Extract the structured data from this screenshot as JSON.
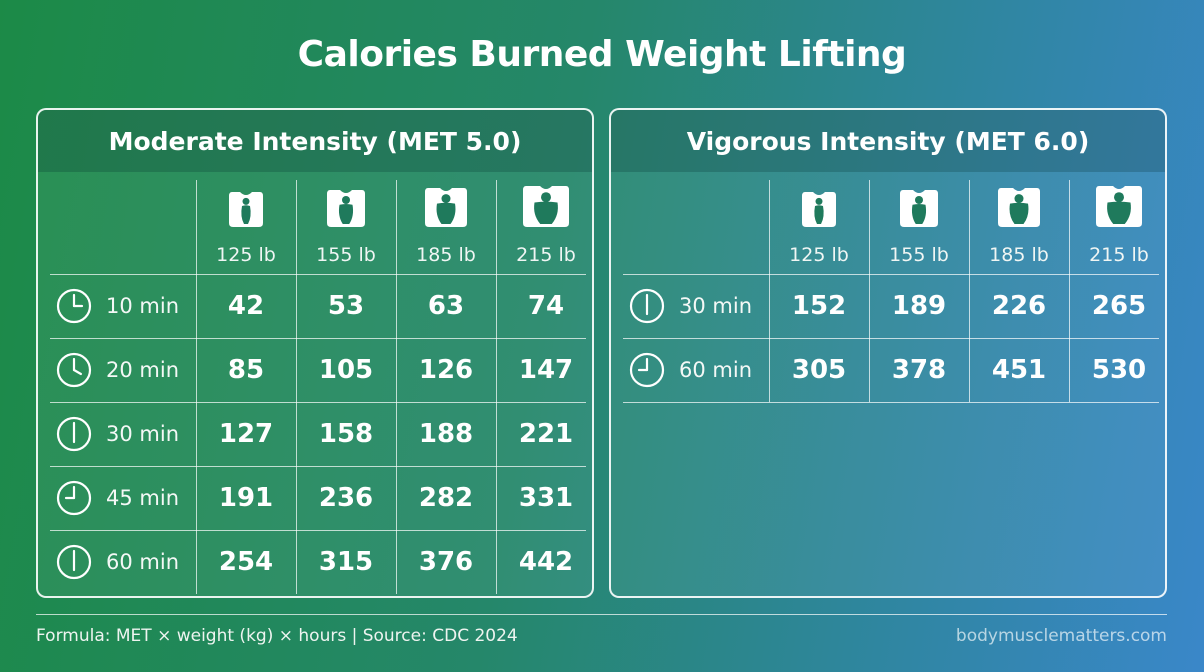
{
  "title": "Calories Burned Weight Lifting",
  "panels": [
    {
      "title": "Moderate Intensity (MET 5.0)",
      "columns": [
        "125 lb",
        "155 lb",
        "185 lb",
        "215 lb"
      ],
      "rows": [
        {
          "label": "10 min",
          "values": [
            42,
            53,
            63,
            74
          ]
        },
        {
          "label": "20 min",
          "values": [
            85,
            105,
            126,
            147
          ]
        },
        {
          "label": "30 min",
          "values": [
            127,
            158,
            188,
            221
          ]
        },
        {
          "label": "45 min",
          "values": [
            191,
            236,
            282,
            331
          ]
        },
        {
          "label": "60 min",
          "values": [
            254,
            315,
            376,
            442
          ]
        }
      ]
    },
    {
      "title": "Vigorous Intensity (MET 6.0)",
      "columns": [
        "125 lb",
        "155 lb",
        "185 lb",
        "215 lb"
      ],
      "rows": [
        {
          "label": "30 min",
          "values": [
            152,
            189,
            226,
            265
          ]
        },
        {
          "label": "60 min",
          "values": [
            305,
            378,
            451,
            530
          ]
        }
      ]
    }
  ],
  "footer": {
    "note": "Formula: MET × weight (kg) × hours | Source: CDC 2024",
    "site": "bodymusclematters.com"
  }
}
